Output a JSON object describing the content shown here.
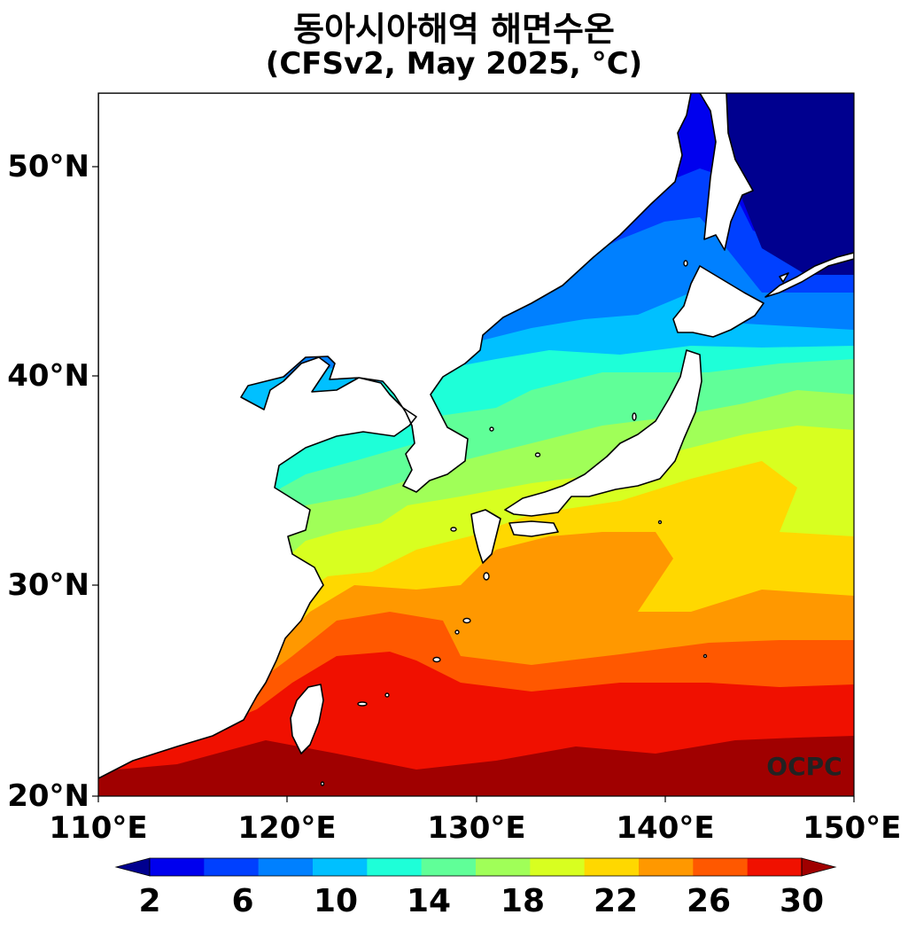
{
  "title": {
    "line1": "동아시아해역 해면수온",
    "line2": "(CFSv2, May 2025, °C)"
  },
  "map": {
    "lon_range": [
      110,
      150
    ],
    "lat_range": [
      20,
      53.5
    ],
    "y_ticks": [
      "50°N",
      "40°N",
      "30°N",
      "20°N"
    ],
    "x_ticks": [
      "110°E",
      "120°E",
      "130°E",
      "140°E",
      "150°E"
    ],
    "watermark": "OCPC"
  },
  "colorbar": {
    "labels": [
      "2",
      "6",
      "10",
      "14",
      "18",
      "22",
      "26",
      "30"
    ],
    "colors": [
      "#00008f",
      "#0000ee",
      "#0040ff",
      "#0080ff",
      "#00c0ff",
      "#1effd8",
      "#60ff98",
      "#a0ff58",
      "#d8ff20",
      "#ffd800",
      "#ff9800",
      "#ff5800",
      "#f01000",
      "#a00000"
    ]
  },
  "colors": {
    "land": "#ffffff",
    "coast": "#000000"
  }
}
